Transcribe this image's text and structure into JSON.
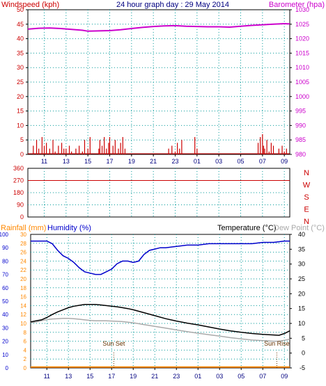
{
  "colors": {
    "wind": "#cc0000",
    "baro": "#cc00cc",
    "dir": "#cc0000",
    "rain": "#ff8800",
    "humid": "#0000cc",
    "temp": "#000000",
    "dew": "#aaaaaa",
    "blue_axis": "#0000cc",
    "grid": "#009999",
    "navy": "#000080"
  },
  "x_ticks": [
    "11",
    "13",
    "15",
    "17",
    "19",
    "21",
    "23",
    "01",
    "03",
    "05",
    "07",
    "09"
  ],
  "chart_data": [
    {
      "type": "bar",
      "title": "24 hour graph day : 29 May 2014",
      "ylabel": "Windspeed (kph)",
      "y2label": "Barometer (hpa)",
      "ylim": [
        0,
        50
      ],
      "y2lim": [
        980,
        1030
      ],
      "yticks": [
        "0",
        "5",
        "10",
        "15",
        "20",
        "25",
        "30",
        "35",
        "40",
        "45",
        "50"
      ],
      "y2ticks": [
        "980",
        "985",
        "990",
        "995",
        "1000",
        "1005",
        "1010",
        "1015",
        "1020",
        "1025",
        "1030"
      ],
      "x_hours_range": [
        9.5,
        33.5
      ],
      "series": [
        {
          "name": "Windspeed (kph)",
          "type": "bar",
          "x": [
            10.0,
            10.3,
            10.5,
            10.8,
            11.0,
            11.2,
            11.5,
            11.8,
            12.0,
            12.3,
            12.6,
            12.8,
            13.0,
            13.3,
            13.5,
            13.9,
            14.2,
            14.5,
            14.7,
            15.0,
            15.2,
            16.0,
            16.1,
            16.3,
            16.5,
            16.7,
            16.9,
            17.0,
            17.3,
            17.5,
            17.8,
            18.0,
            18.2,
            18.4,
            22.4,
            22.7,
            23.0,
            23.2,
            23.4,
            23.6,
            24.8,
            25.0,
            30.6,
            30.8,
            31.0,
            31.1,
            31.2,
            31.4,
            31.6,
            31.8,
            32.0,
            32.5,
            32.8,
            33.0,
            33.2
          ],
          "values": [
            3,
            5,
            2,
            6,
            3,
            4,
            2,
            5,
            1,
            3,
            4,
            2,
            2,
            3,
            1,
            2,
            3,
            1,
            5,
            2,
            6,
            2,
            5,
            3,
            6,
            2,
            4,
            6,
            3,
            5,
            2,
            4,
            6,
            2,
            2,
            3,
            1,
            4,
            2,
            5,
            6,
            2,
            4,
            6,
            7,
            3,
            2,
            5,
            1,
            4,
            3,
            2,
            3,
            1,
            2
          ]
        },
        {
          "name": "Barometer (hpa)",
          "type": "line",
          "x": [
            9.5,
            10.5,
            11.5,
            12.5,
            13.5,
            14.5,
            15.0,
            16.0,
            17.0,
            18.0,
            19.0,
            20.0,
            21.0,
            22.0,
            23.0,
            24.0,
            25.0,
            26.0,
            27.0,
            28.0,
            29.0,
            30.0,
            31.0,
            32.0,
            33.0,
            33.5
          ],
          "values": [
            1023.3,
            1023.6,
            1023.7,
            1023.5,
            1023.2,
            1022.9,
            1022.6,
            1022.7,
            1022.8,
            1023.1,
            1023.5,
            1023.9,
            1024.2,
            1024.4,
            1024.5,
            1024.3,
            1024.2,
            1024.1,
            1024.1,
            1024.0,
            1024.3,
            1024.6,
            1024.8,
            1025.0,
            1025.2,
            1025.1
          ]
        }
      ]
    },
    {
      "type": "line",
      "ylim": [
        0,
        360
      ],
      "yticks": [
        "0",
        "90",
        "180",
        "270",
        "360"
      ],
      "compass": [
        "N",
        "W",
        "S",
        "E",
        "N"
      ],
      "x_hours_range": [
        9.5,
        33.5
      ],
      "series": [
        {
          "x": [
            9.5,
            33.5
          ],
          "values": [
            270,
            270
          ]
        }
      ]
    },
    {
      "type": "line",
      "label_rain": "Rainfall (mm)",
      "label_humid": "Humidity (%)",
      "label_temp": "Temperature (°C)",
      "label_dew": "Dew Point (°C)",
      "ylim_rain": [
        0,
        30
      ],
      "ylim_humid": [
        0,
        100
      ],
      "ylim_temp": [
        -5,
        40
      ],
      "rain_ticks": [
        "0",
        "2",
        "4",
        "6",
        "8",
        "10",
        "12",
        "14",
        "16",
        "18",
        "20",
        "22",
        "24",
        "26",
        "28",
        "30"
      ],
      "humid_ticks": [
        "0",
        "10",
        "20",
        "30",
        "40",
        "50",
        "60",
        "70",
        "80",
        "90",
        "100"
      ],
      "temp_ticks": [
        "-5",
        "0",
        "5",
        "10",
        "15",
        "20",
        "25",
        "30",
        "35",
        "40"
      ],
      "annotations": [
        {
          "text": "Sun Set",
          "x": 17.2
        },
        {
          "text": "Sun Rise",
          "x": 32.3
        }
      ],
      "x_hours_range": [
        9.5,
        33.5
      ],
      "series": [
        {
          "name": "Humidity (%)",
          "x": [
            9.5,
            10.0,
            10.5,
            11.0,
            11.5,
            12.0,
            12.5,
            13.0,
            13.5,
            14.0,
            14.5,
            15.0,
            15.5,
            16.0,
            16.5,
            17.0,
            17.5,
            18.0,
            18.5,
            19.0,
            19.5,
            20.0,
            20.5,
            21.0,
            21.5,
            22.0,
            23.0,
            24.0,
            25.0,
            26.0,
            27.0,
            28.0,
            29.0,
            30.0,
            31.0,
            32.0,
            33.0,
            33.5
          ],
          "values": [
            95,
            95,
            95,
            95,
            93,
            88,
            84,
            82,
            79,
            75,
            72,
            71,
            70,
            70,
            72,
            74,
            78,
            80,
            80,
            79,
            80,
            85,
            88,
            89,
            90,
            90,
            91,
            92,
            92,
            93,
            93,
            93,
            93,
            93,
            94,
            94,
            95,
            95
          ]
        },
        {
          "name": "Temperature (°C)",
          "x": [
            9.5,
            10.0,
            10.5,
            11.0,
            11.5,
            12.0,
            12.5,
            13.0,
            13.5,
            14.0,
            14.5,
            15.0,
            15.5,
            16.0,
            16.5,
            17.0,
            17.5,
            18.0,
            18.5,
            19.0,
            19.5,
            20.0,
            21.0,
            22.0,
            23.0,
            24.0,
            25.0,
            26.0,
            27.0,
            28.0,
            29.0,
            30.0,
            31.0,
            32.0,
            32.5,
            33.0,
            33.5
          ],
          "values": [
            10.5,
            10.9,
            11.2,
            12.0,
            13.0,
            13.9,
            14.6,
            15.3,
            15.8,
            16.1,
            16.4,
            16.4,
            16.4,
            16.2,
            16.0,
            15.8,
            15.6,
            15.3,
            15.0,
            14.6,
            14.1,
            13.6,
            12.6,
            11.6,
            10.8,
            10.1,
            9.5,
            8.8,
            8.1,
            7.5,
            7.0,
            6.6,
            6.3,
            6.1,
            6.0,
            6.6,
            7.5
          ]
        },
        {
          "name": "Dew Point (°C)",
          "x": [
            9.5,
            10.0,
            10.5,
            11.0,
            11.5,
            12.0,
            12.5,
            13.0,
            13.5,
            14.0,
            14.5,
            15.0,
            15.5,
            16.0,
            16.5,
            17.0,
            17.5,
            18.0,
            18.5,
            19.0,
            19.5,
            20.0,
            21.0,
            22.0,
            23.0,
            24.0,
            25.0,
            26.0,
            27.0,
            28.0,
            29.0,
            30.0,
            31.0,
            32.0,
            32.5,
            33.0,
            33.5
          ],
          "values": [
            10.2,
            10.5,
            10.9,
            11.3,
            11.5,
            11.6,
            11.7,
            11.7,
            11.6,
            11.4,
            11.2,
            11.0,
            10.9,
            10.9,
            10.9,
            10.8,
            10.7,
            10.6,
            10.4,
            10.2,
            9.9,
            9.6,
            9.0,
            8.4,
            7.8,
            7.2,
            6.7,
            6.2,
            5.7,
            5.2,
            4.8,
            4.4,
            4.2,
            4.0,
            4.0,
            4.3,
            4.7
          ]
        },
        {
          "name": "Rainfall (mm)",
          "x": [
            9.5,
            33.5
          ],
          "values": [
            0.2,
            0.2
          ]
        }
      ]
    }
  ]
}
